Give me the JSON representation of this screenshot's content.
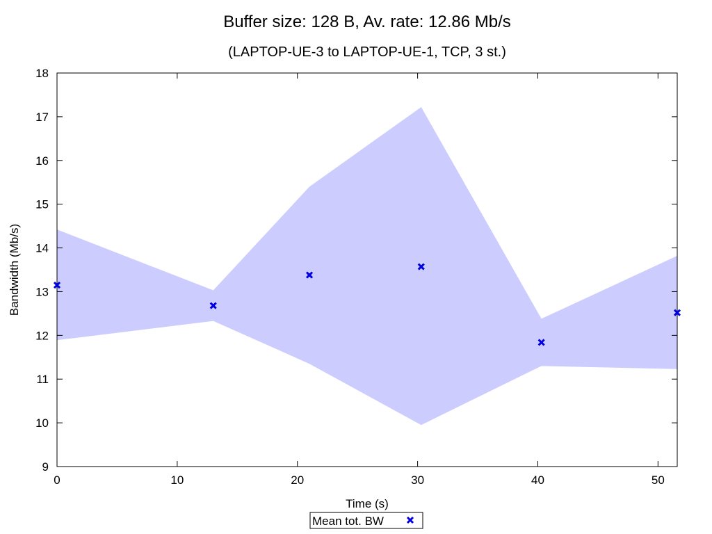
{
  "chart_data": {
    "type": "scatter",
    "title": "Buffer size: 128 B, Av. rate: 12.86 Mb/s",
    "subtitle": "(LAPTOP-UE-3 to LAPTOP-UE-1, TCP, 3 st.)",
    "xlabel": "Time (s)",
    "ylabel": "Bandwidth (Mb/s)",
    "xlim": [
      0,
      51.6
    ],
    "ylim": [
      9,
      18
    ],
    "xticks": [
      0,
      10,
      20,
      30,
      40,
      50
    ],
    "yticks": [
      9,
      10,
      11,
      12,
      13,
      14,
      15,
      16,
      17,
      18
    ],
    "grid": false,
    "legend_position": "bottom-center",
    "series": [
      {
        "name": "Mean tot. BW",
        "marker": "x",
        "color": "#0000e0",
        "x": [
          0,
          13.0,
          21.0,
          30.3,
          40.3,
          51.6
        ],
        "y": [
          13.15,
          12.68,
          13.38,
          13.57,
          11.84,
          12.52
        ]
      }
    ],
    "band": {
      "color": "#ccccff",
      "x": [
        0,
        13.0,
        21.0,
        30.3,
        40.3,
        51.6
      ],
      "upper": [
        14.42,
        13.03,
        15.4,
        17.22,
        12.38,
        13.82
      ],
      "lower": [
        11.89,
        12.33,
        11.35,
        9.95,
        11.3,
        11.23
      ]
    }
  }
}
